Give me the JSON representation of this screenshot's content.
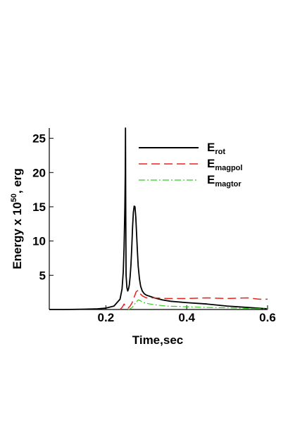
{
  "chart_data": {
    "type": "line",
    "title": "",
    "xlabel": "Time,sec",
    "ylabel_parts": {
      "before": "Energy x 10",
      "superscript": "50",
      "after": ", erg"
    },
    "xlim": [
      0.06,
      0.6
    ],
    "ylim": [
      0,
      26.5
    ],
    "xticks": [
      0.2,
      0.4,
      0.6
    ],
    "xtick_labels": [
      "0.2",
      "0.4",
      "0.6"
    ],
    "yticks": [
      5,
      10,
      15,
      20,
      25
    ],
    "ytick_labels": [
      "5",
      "10",
      "15",
      "20",
      "25"
    ],
    "grid": false,
    "legend_position": "top-right",
    "series": [
      {
        "name": "E",
        "subscript": "rot",
        "color": "#000000",
        "dash": "solid",
        "x": [
          0.06,
          0.1,
          0.15,
          0.18,
          0.2,
          0.22,
          0.235,
          0.24,
          0.243,
          0.245,
          0.247,
          0.248,
          0.2485,
          0.249,
          0.2495,
          0.25,
          0.252,
          0.254,
          0.256,
          0.258,
          0.26,
          0.262,
          0.264,
          0.266,
          0.268,
          0.27,
          0.272,
          0.274,
          0.276,
          0.278,
          0.28,
          0.283,
          0.286,
          0.29,
          0.295,
          0.3,
          0.31,
          0.32,
          0.34,
          0.36,
          0.4,
          0.45,
          0.5,
          0.55,
          0.6
        ],
        "y": [
          0.0,
          0.0,
          0.05,
          0.1,
          0.2,
          0.5,
          1.5,
          3.0,
          5.5,
          9.0,
          15.0,
          20.0,
          26.5,
          17.0,
          10.0,
          5.0,
          3.2,
          2.7,
          3.0,
          3.6,
          4.8,
          6.5,
          9.0,
          12.0,
          14.2,
          15.1,
          15.0,
          13.5,
          11.0,
          8.5,
          6.3,
          4.5,
          3.4,
          2.7,
          2.3,
          2.1,
          1.9,
          1.7,
          1.4,
          1.2,
          1.0,
          0.8,
          0.5,
          0.3,
          0.1
        ]
      },
      {
        "name": "E",
        "subscript": "magpol",
        "color": "#e8231e",
        "dash": "long-dash",
        "x": [
          0.235,
          0.24,
          0.245,
          0.25,
          0.255,
          0.26,
          0.265,
          0.27,
          0.275,
          0.28,
          0.285,
          0.29,
          0.3,
          0.32,
          0.35,
          0.4,
          0.45,
          0.5,
          0.55,
          0.58,
          0.6
        ],
        "y": [
          0.0,
          0.3,
          0.8,
          0.3,
          0.2,
          0.5,
          1.0,
          1.8,
          2.6,
          2.8,
          2.3,
          2.0,
          1.7,
          1.7,
          1.6,
          1.6,
          1.7,
          1.6,
          1.7,
          1.5,
          1.5
        ]
      },
      {
        "name": "E",
        "subscript": "magtor",
        "color": "#33cc22",
        "dash": "dash-dot",
        "x": [
          0.255,
          0.26,
          0.265,
          0.27,
          0.275,
          0.28,
          0.285,
          0.29,
          0.3,
          0.32,
          0.35,
          0.4,
          0.45,
          0.5,
          0.55,
          0.6
        ],
        "y": [
          0.0,
          0.1,
          0.3,
          0.7,
          1.1,
          1.4,
          1.3,
          1.1,
          0.9,
          0.7,
          0.5,
          0.4,
          0.3,
          0.25,
          0.15,
          0.1
        ]
      }
    ]
  }
}
